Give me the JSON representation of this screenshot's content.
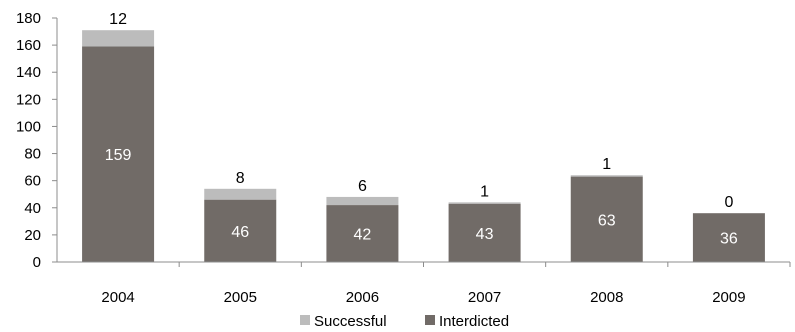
{
  "chart_data": {
    "type": "bar",
    "stacked": true,
    "categories": [
      "2004",
      "2005",
      "2006",
      "2007",
      "2008",
      "2009"
    ],
    "series": [
      {
        "name": "Interdicted",
        "values": [
          159,
          46,
          42,
          43,
          63,
          36
        ]
      },
      {
        "name": "Successful",
        "values": [
          12,
          8,
          6,
          1,
          1,
          0
        ]
      }
    ],
    "ylim": [
      0,
      180
    ],
    "yticks": [
      0,
      20,
      40,
      60,
      80,
      100,
      120,
      140,
      160,
      180
    ],
    "grid": false,
    "legend_position": "bottom",
    "colors": {
      "Interdicted": "#716b67",
      "Successful": "#bcbcbc",
      "axis": "#8c8c8c"
    }
  }
}
